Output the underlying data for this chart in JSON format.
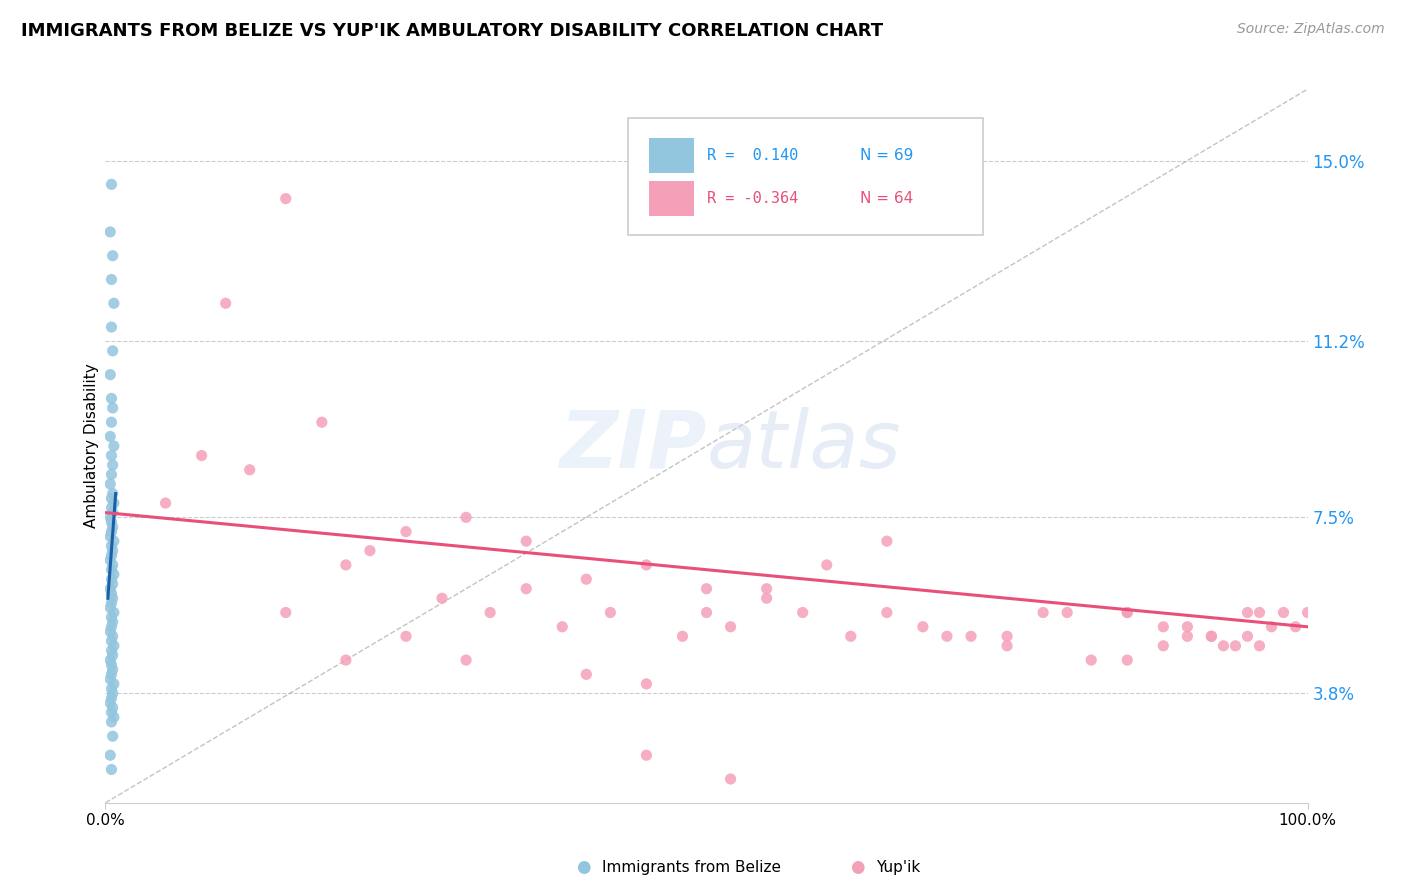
{
  "title": "IMMIGRANTS FROM BELIZE VS YUP'IK AMBULATORY DISABILITY CORRELATION CHART",
  "source_text": "Source: ZipAtlas.com",
  "ylabel": "Ambulatory Disability",
  "ytick_vals": [
    3.8,
    7.5,
    11.2,
    15.0
  ],
  "xlim": [
    0.0,
    100.0
  ],
  "ylim": [
    1.5,
    16.5
  ],
  "color_blue": "#92C5DE",
  "color_pink": "#F4A0B8",
  "color_blue_line": "#1A5FA8",
  "color_pink_line": "#E8507A",
  "color_blue_text": "#2196F3",
  "color_pink_text": "#E8507A",
  "belize_x": [
    0.5,
    0.4,
    0.6,
    0.5,
    0.7,
    0.5,
    0.6,
    0.4,
    0.5,
    0.6,
    0.5,
    0.4,
    0.7,
    0.5,
    0.6,
    0.5,
    0.4,
    0.6,
    0.5,
    0.7,
    0.5,
    0.6,
    0.4,
    0.5,
    0.6,
    0.5,
    0.4,
    0.7,
    0.5,
    0.6,
    0.5,
    0.4,
    0.6,
    0.5,
    0.7,
    0.5,
    0.6,
    0.4,
    0.5,
    0.6,
    0.5,
    0.4,
    0.7,
    0.5,
    0.6,
    0.5,
    0.4,
    0.6,
    0.5,
    0.7,
    0.5,
    0.6,
    0.4,
    0.5,
    0.6,
    0.5,
    0.4,
    0.7,
    0.5,
    0.6,
    0.5,
    0.4,
    0.6,
    0.5,
    0.7,
    0.5,
    0.6,
    0.4,
    0.5
  ],
  "belize_y": [
    14.5,
    13.5,
    13.0,
    12.5,
    12.0,
    11.5,
    11.0,
    10.5,
    10.0,
    9.8,
    9.5,
    9.2,
    9.0,
    8.8,
    8.6,
    8.4,
    8.2,
    8.0,
    7.9,
    7.8,
    7.7,
    7.6,
    7.5,
    7.4,
    7.3,
    7.2,
    7.1,
    7.0,
    6.9,
    6.8,
    6.7,
    6.6,
    6.5,
    6.4,
    6.3,
    6.2,
    6.1,
    6.0,
    5.9,
    5.8,
    5.7,
    5.6,
    5.5,
    5.4,
    5.3,
    5.2,
    5.1,
    5.0,
    4.9,
    4.8,
    4.7,
    4.6,
    4.5,
    4.4,
    4.3,
    4.2,
    4.1,
    4.0,
    3.9,
    3.8,
    3.7,
    3.6,
    3.5,
    3.4,
    3.3,
    3.2,
    2.9,
    2.5,
    2.2
  ],
  "yupik_x": [
    5.0,
    15.0,
    10.0,
    18.0,
    8.0,
    25.0,
    12.0,
    30.0,
    20.0,
    35.0,
    22.0,
    40.0,
    28.0,
    45.0,
    32.0,
    50.0,
    38.0,
    55.0,
    42.0,
    60.0,
    48.0,
    65.0,
    52.0,
    70.0,
    58.0,
    75.0,
    62.0,
    80.0,
    68.0,
    85.0,
    72.0,
    88.0,
    78.0,
    90.0,
    82.0,
    92.0,
    85.0,
    93.0,
    88.0,
    95.0,
    90.0,
    96.0,
    92.0,
    97.0,
    94.0,
    98.0,
    95.0,
    99.0,
    96.0,
    100.0,
    15.0,
    20.0,
    25.0,
    30.0,
    35.0,
    40.0,
    45.0,
    50.0,
    55.0,
    65.0,
    75.0,
    85.0,
    45.0,
    52.0
  ],
  "yupik_y": [
    7.8,
    14.2,
    12.0,
    9.5,
    8.8,
    7.2,
    8.5,
    7.5,
    6.5,
    7.0,
    6.8,
    6.2,
    5.8,
    6.5,
    5.5,
    6.0,
    5.2,
    5.8,
    5.5,
    6.5,
    5.0,
    5.5,
    5.2,
    5.0,
    5.5,
    4.8,
    5.0,
    5.5,
    5.2,
    4.5,
    5.0,
    4.8,
    5.5,
    5.2,
    4.5,
    5.0,
    5.5,
    4.8,
    5.2,
    5.5,
    5.0,
    5.5,
    5.0,
    5.2,
    4.8,
    5.5,
    5.0,
    5.2,
    4.8,
    5.5,
    5.5,
    4.5,
    5.0,
    4.5,
    6.0,
    4.2,
    4.0,
    5.5,
    6.0,
    7.0,
    5.0,
    5.5,
    2.5,
    2.0
  ],
  "yupik_trend_x0": 0.0,
  "yupik_trend_y0": 7.6,
  "yupik_trend_x1": 100.0,
  "yupik_trend_y1": 5.2,
  "belize_trend_x0": 0.2,
  "belize_trend_y0": 5.8,
  "belize_trend_x1": 0.85,
  "belize_trend_y1": 8.0,
  "diag_x0": 0.0,
  "diag_y0": 1.5,
  "diag_x1": 100.0,
  "diag_y1": 16.5
}
